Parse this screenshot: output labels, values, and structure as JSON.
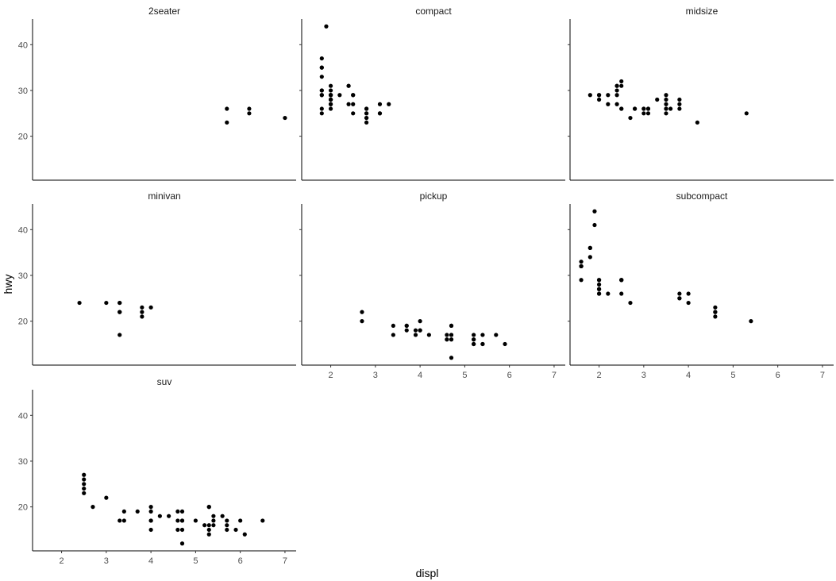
{
  "chart_data": {
    "type": "scatter",
    "facet_by": "class",
    "xlabel": "displ",
    "ylabel": "hwy",
    "xlim": [
      1.35,
      7.25
    ],
    "ylim": [
      10.4,
      45.6
    ],
    "x_ticks": [
      "2",
      "3",
      "4",
      "5",
      "6",
      "7"
    ],
    "y_ticks": [
      "20",
      "30",
      "40"
    ],
    "colors": {
      "point": "#000000",
      "panel_axis": "#000000",
      "tick_text": "#4d4d4d"
    },
    "panels": [
      {
        "name": "2seater",
        "points": [
          [
            5.7,
            26
          ],
          [
            5.7,
            23
          ],
          [
            6.2,
            26
          ],
          [
            6.2,
            25
          ],
          [
            7.0,
            24
          ]
        ]
      },
      {
        "name": "compact",
        "points": [
          [
            1.8,
            29
          ],
          [
            1.8,
            29
          ],
          [
            2.0,
            31
          ],
          [
            2.0,
            30
          ],
          [
            2.8,
            26
          ],
          [
            2.8,
            26
          ],
          [
            3.1,
            27
          ],
          [
            1.8,
            26
          ],
          [
            1.8,
            25
          ],
          [
            2.0,
            28
          ],
          [
            2.0,
            28
          ],
          [
            2.8,
            25
          ],
          [
            2.8,
            25
          ],
          [
            3.1,
            25
          ],
          [
            3.1,
            25
          ],
          [
            2.4,
            31
          ],
          [
            2.4,
            31
          ],
          [
            2.5,
            29
          ],
          [
            2.5,
            29
          ],
          [
            1.8,
            33
          ],
          [
            1.8,
            35
          ],
          [
            1.8,
            37
          ],
          [
            1.8,
            35
          ],
          [
            1.9,
            44
          ],
          [
            2.0,
            29
          ],
          [
            2.0,
            26
          ],
          [
            2.0,
            29
          ],
          [
            2.0,
            29
          ],
          [
            2.5,
            27
          ],
          [
            1.8,
            30
          ],
          [
            1.8,
            30
          ],
          [
            2.0,
            29
          ],
          [
            2.0,
            27
          ],
          [
            2.2,
            29
          ],
          [
            2.8,
            24
          ],
          [
            3.3,
            27
          ],
          [
            2.8,
            23
          ],
          [
            2.4,
            27
          ],
          [
            2.5,
            25
          ],
          [
            2.0,
            28
          ],
          [
            2.0,
            27
          ],
          [
            2.8,
            24
          ]
        ]
      },
      {
        "name": "midsize",
        "points": [
          [
            2.4,
            31
          ],
          [
            2.4,
            30
          ],
          [
            3.1,
            26
          ],
          [
            3.5,
            29
          ],
          [
            5.3,
            25
          ],
          [
            2.2,
            27
          ],
          [
            2.4,
            29
          ],
          [
            2.4,
            31
          ],
          [
            3.0,
            26
          ],
          [
            3.5,
            26
          ],
          [
            2.5,
            32
          ],
          [
            3.3,
            28
          ],
          [
            3.8,
            27
          ],
          [
            3.8,
            26
          ],
          [
            4.2,
            23
          ],
          [
            1.8,
            29
          ],
          [
            2.0,
            29
          ],
          [
            2.0,
            28
          ],
          [
            2.0,
            29
          ],
          [
            2.5,
            26
          ],
          [
            2.5,
            26
          ],
          [
            2.8,
            26
          ],
          [
            3.1,
            26
          ],
          [
            3.5,
            26
          ],
          [
            3.5,
            27
          ],
          [
            3.6,
            26
          ],
          [
            3.8,
            28
          ],
          [
            2.4,
            27
          ],
          [
            2.2,
            29
          ],
          [
            2.5,
            31
          ],
          [
            2.7,
            24
          ],
          [
            3.0,
            26
          ],
          [
            3.1,
            25
          ],
          [
            3.5,
            25
          ],
          [
            3.5,
            28
          ],
          [
            2.8,
            26
          ],
          [
            3.0,
            25
          ]
        ]
      },
      {
        "name": "minivan",
        "points": [
          [
            2.4,
            24
          ],
          [
            3.0,
            24
          ],
          [
            3.3,
            22
          ],
          [
            3.3,
            22
          ],
          [
            3.3,
            24
          ],
          [
            3.3,
            24
          ],
          [
            3.3,
            17
          ],
          [
            3.8,
            22
          ],
          [
            3.8,
            21
          ],
          [
            3.8,
            23
          ],
          [
            4.0,
            23
          ]
        ]
      },
      {
        "name": "pickup",
        "points": [
          [
            2.7,
            20
          ],
          [
            2.7,
            22
          ],
          [
            3.4,
            17
          ],
          [
            3.4,
            19
          ],
          [
            3.7,
            18
          ],
          [
            3.7,
            19
          ],
          [
            3.9,
            17
          ],
          [
            4.0,
            20
          ],
          [
            4.0,
            18
          ],
          [
            4.2,
            17
          ],
          [
            4.6,
            17
          ],
          [
            4.6,
            16
          ],
          [
            4.7,
            16
          ],
          [
            4.7,
            17
          ],
          [
            4.7,
            12
          ],
          [
            4.7,
            19
          ],
          [
            5.2,
            17
          ],
          [
            5.2,
            15
          ],
          [
            5.4,
            15
          ],
          [
            5.4,
            17
          ],
          [
            5.7,
            17
          ],
          [
            5.9,
            15
          ],
          [
            4.7,
            16
          ],
          [
            4.7,
            17
          ],
          [
            5.2,
            16
          ],
          [
            5.2,
            15
          ],
          [
            4.0,
            18
          ],
          [
            3.7,
            19
          ],
          [
            3.9,
            18
          ],
          [
            4.6,
            16
          ],
          [
            4.7,
            19
          ],
          [
            5.2,
            16
          ],
          [
            5.4,
            15
          ]
        ]
      },
      {
        "name": "subcompact",
        "points": [
          [
            3.8,
            26
          ],
          [
            3.8,
            25
          ],
          [
            4.0,
            26
          ],
          [
            4.0,
            24
          ],
          [
            4.6,
            21
          ],
          [
            4.6,
            22
          ],
          [
            4.6,
            23
          ],
          [
            4.6,
            22
          ],
          [
            5.4,
            20
          ],
          [
            1.6,
            33
          ],
          [
            1.6,
            32
          ],
          [
            1.6,
            32
          ],
          [
            1.6,
            29
          ],
          [
            1.6,
            32
          ],
          [
            1.8,
            34
          ],
          [
            1.8,
            36
          ],
          [
            1.8,
            36
          ],
          [
            2.0,
            29
          ],
          [
            2.0,
            26
          ],
          [
            2.0,
            27
          ],
          [
            2.0,
            26
          ],
          [
            2.2,
            26
          ],
          [
            2.5,
            26
          ],
          [
            2.5,
            29
          ],
          [
            1.9,
            44
          ],
          [
            1.9,
            41
          ],
          [
            2.0,
            28
          ],
          [
            2.0,
            29
          ],
          [
            2.5,
            29
          ],
          [
            2.7,
            24
          ],
          [
            2.0,
            27
          ],
          [
            1.6,
            32
          ],
          [
            3.8,
            25
          ],
          [
            2.5,
            29
          ]
        ]
      },
      {
        "name": "suv",
        "points": [
          [
            5.3,
            20
          ],
          [
            5.3,
            15
          ],
          [
            5.3,
            20
          ],
          [
            5.7,
            17
          ],
          [
            6.0,
            17
          ],
          [
            5.7,
            15
          ],
          [
            6.5,
            17
          ],
          [
            2.5,
            27
          ],
          [
            2.5,
            25
          ],
          [
            2.5,
            26
          ],
          [
            2.5,
            24
          ],
          [
            2.5,
            23
          ],
          [
            2.7,
            20
          ],
          [
            3.0,
            22
          ],
          [
            3.3,
            17
          ],
          [
            3.4,
            17
          ],
          [
            3.4,
            19
          ],
          [
            3.7,
            19
          ],
          [
            4.0,
            19
          ],
          [
            4.0,
            20
          ],
          [
            4.0,
            17
          ],
          [
            4.0,
            15
          ],
          [
            4.0,
            17
          ],
          [
            4.2,
            18
          ],
          [
            4.4,
            18
          ],
          [
            4.6,
            17
          ],
          [
            4.6,
            19
          ],
          [
            4.7,
            19
          ],
          [
            4.7,
            15
          ],
          [
            4.7,
            12
          ],
          [
            4.7,
            17
          ],
          [
            5.0,
            17
          ],
          [
            5.2,
            16
          ],
          [
            5.3,
            14
          ],
          [
            5.4,
            18
          ],
          [
            5.4,
            17
          ],
          [
            5.4,
            16
          ],
          [
            5.6,
            18
          ],
          [
            5.7,
            16
          ],
          [
            6.1,
            14
          ],
          [
            4.6,
            15
          ],
          [
            4.7,
            17
          ],
          [
            5.9,
            15
          ],
          [
            5.3,
            16
          ]
        ]
      }
    ]
  }
}
